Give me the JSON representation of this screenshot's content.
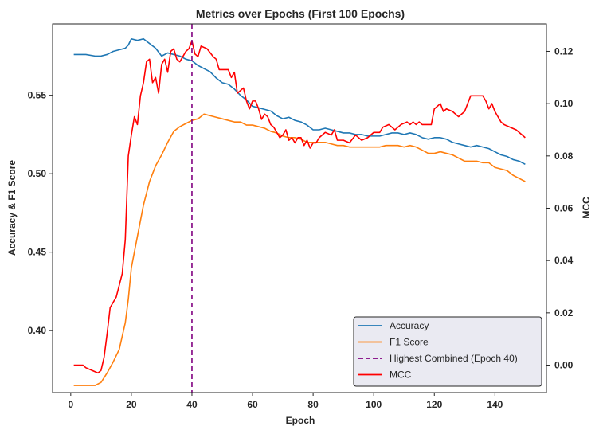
{
  "chart_data": {
    "type": "line",
    "title": "Metrics over Epochs (First 100 Epochs)",
    "xlabel": "Epoch",
    "ylabel_left": "Accuracy & F1 Score",
    "ylabel_right": "MCC",
    "xlim": [
      -6,
      157
    ],
    "ylim_left": [
      0.3605,
      0.5955
    ],
    "ylim_right": [
      -0.0105,
      0.1305
    ],
    "x_ticks": [
      0,
      20,
      40,
      60,
      80,
      100,
      120,
      140
    ],
    "y_ticks_left": [
      0.4,
      0.45,
      0.5,
      0.55
    ],
    "y_ticks_right": [
      0.0,
      0.02,
      0.04,
      0.06,
      0.08,
      0.1,
      0.12
    ],
    "grid": false,
    "legend_position": "lower right",
    "vline": {
      "x": 40,
      "label": "Highest Combined (Epoch 40)",
      "color": "#800080"
    },
    "series": [
      {
        "name": "Accuracy",
        "axis": "left",
        "color": "#1f77b4",
        "points": [
          [
            1,
            0.576
          ],
          [
            5,
            0.576
          ],
          [
            8,
            0.575
          ],
          [
            10,
            0.575
          ],
          [
            12,
            0.576
          ],
          [
            14,
            0.578
          ],
          [
            16,
            0.579
          ],
          [
            18,
            0.58
          ],
          [
            19,
            0.582
          ],
          [
            20,
            0.586
          ],
          [
            22,
            0.585
          ],
          [
            24,
            0.586
          ],
          [
            26,
            0.583
          ],
          [
            28,
            0.58
          ],
          [
            30,
            0.575
          ],
          [
            32,
            0.577
          ],
          [
            34,
            0.576
          ],
          [
            36,
            0.575
          ],
          [
            38,
            0.573
          ],
          [
            40,
            0.572
          ],
          [
            42,
            0.569
          ],
          [
            44,
            0.567
          ],
          [
            46,
            0.565
          ],
          [
            48,
            0.561
          ],
          [
            50,
            0.558
          ],
          [
            52,
            0.557
          ],
          [
            54,
            0.554
          ],
          [
            56,
            0.55
          ],
          [
            58,
            0.547
          ],
          [
            60,
            0.543
          ],
          [
            62,
            0.542
          ],
          [
            64,
            0.541
          ],
          [
            66,
            0.54
          ],
          [
            68,
            0.537
          ],
          [
            70,
            0.535
          ],
          [
            72,
            0.536
          ],
          [
            74,
            0.534
          ],
          [
            76,
            0.533
          ],
          [
            78,
            0.531
          ],
          [
            80,
            0.528
          ],
          [
            82,
            0.528
          ],
          [
            84,
            0.529
          ],
          [
            86,
            0.528
          ],
          [
            88,
            0.527
          ],
          [
            90,
            0.526
          ],
          [
            92,
            0.526
          ],
          [
            94,
            0.525
          ],
          [
            96,
            0.525
          ],
          [
            98,
            0.524
          ],
          [
            100,
            0.524
          ],
          [
            102,
            0.524
          ],
          [
            104,
            0.525
          ],
          [
            106,
            0.526
          ],
          [
            108,
            0.526
          ],
          [
            110,
            0.525
          ],
          [
            112,
            0.526
          ],
          [
            114,
            0.525
          ],
          [
            116,
            0.523
          ],
          [
            118,
            0.522
          ],
          [
            120,
            0.523
          ],
          [
            122,
            0.523
          ],
          [
            124,
            0.522
          ],
          [
            126,
            0.52
          ],
          [
            128,
            0.519
          ],
          [
            130,
            0.518
          ],
          [
            132,
            0.517
          ],
          [
            134,
            0.518
          ],
          [
            136,
            0.517
          ],
          [
            138,
            0.516
          ],
          [
            140,
            0.514
          ],
          [
            142,
            0.512
          ],
          [
            144,
            0.511
          ],
          [
            146,
            0.509
          ],
          [
            148,
            0.508
          ],
          [
            150,
            0.506
          ]
        ]
      },
      {
        "name": "F1 Score",
        "axis": "left",
        "color": "#ff7f0e",
        "points": [
          [
            1,
            0.365
          ],
          [
            5,
            0.365
          ],
          [
            8,
            0.365
          ],
          [
            10,
            0.367
          ],
          [
            12,
            0.373
          ],
          [
            14,
            0.38
          ],
          [
            16,
            0.388
          ],
          [
            18,
            0.405
          ],
          [
            19,
            0.42
          ],
          [
            20,
            0.44
          ],
          [
            22,
            0.46
          ],
          [
            24,
            0.48
          ],
          [
            26,
            0.495
          ],
          [
            28,
            0.505
          ],
          [
            30,
            0.512
          ],
          [
            32,
            0.52
          ],
          [
            34,
            0.527
          ],
          [
            36,
            0.53
          ],
          [
            38,
            0.532
          ],
          [
            40,
            0.534
          ],
          [
            42,
            0.535
          ],
          [
            44,
            0.538
          ],
          [
            46,
            0.537
          ],
          [
            48,
            0.536
          ],
          [
            50,
            0.535
          ],
          [
            52,
            0.534
          ],
          [
            54,
            0.533
          ],
          [
            56,
            0.533
          ],
          [
            58,
            0.531
          ],
          [
            60,
            0.531
          ],
          [
            62,
            0.53
          ],
          [
            64,
            0.529
          ],
          [
            66,
            0.527
          ],
          [
            68,
            0.526
          ],
          [
            70,
            0.524
          ],
          [
            72,
            0.523
          ],
          [
            74,
            0.523
          ],
          [
            76,
            0.522
          ],
          [
            78,
            0.52
          ],
          [
            80,
            0.52
          ],
          [
            82,
            0.52
          ],
          [
            84,
            0.52
          ],
          [
            86,
            0.519
          ],
          [
            88,
            0.518
          ],
          [
            90,
            0.518
          ],
          [
            92,
            0.517
          ],
          [
            94,
            0.517
          ],
          [
            96,
            0.517
          ],
          [
            98,
            0.517
          ],
          [
            100,
            0.517
          ],
          [
            102,
            0.517
          ],
          [
            104,
            0.518
          ],
          [
            106,
            0.518
          ],
          [
            108,
            0.518
          ],
          [
            110,
            0.517
          ],
          [
            112,
            0.518
          ],
          [
            114,
            0.517
          ],
          [
            116,
            0.515
          ],
          [
            118,
            0.513
          ],
          [
            120,
            0.513
          ],
          [
            122,
            0.514
          ],
          [
            124,
            0.513
          ],
          [
            126,
            0.512
          ],
          [
            128,
            0.51
          ],
          [
            130,
            0.508
          ],
          [
            132,
            0.508
          ],
          [
            134,
            0.508
          ],
          [
            136,
            0.507
          ],
          [
            138,
            0.507
          ],
          [
            140,
            0.504
          ],
          [
            142,
            0.503
          ],
          [
            144,
            0.502
          ],
          [
            146,
            0.499
          ],
          [
            148,
            0.497
          ],
          [
            150,
            0.495
          ]
        ]
      },
      {
        "name": "MCC",
        "axis": "right",
        "color": "#ff0000",
        "points": [
          [
            1,
            0.0
          ],
          [
            4,
            0.0
          ],
          [
            5,
            -0.001
          ],
          [
            7,
            -0.002
          ],
          [
            9,
            -0.003
          ],
          [
            10,
            -0.002
          ],
          [
            11,
            0.003
          ],
          [
            12,
            0.012
          ],
          [
            13,
            0.022
          ],
          [
            15,
            0.026
          ],
          [
            17,
            0.035
          ],
          [
            18,
            0.048
          ],
          [
            19,
            0.08
          ],
          [
            20,
            0.088
          ],
          [
            21,
            0.095
          ],
          [
            22,
            0.092
          ],
          [
            23,
            0.103
          ],
          [
            24,
            0.108
          ],
          [
            25,
            0.116
          ],
          [
            26,
            0.117
          ],
          [
            27,
            0.108
          ],
          [
            28,
            0.11
          ],
          [
            29,
            0.104
          ],
          [
            30,
            0.115
          ],
          [
            31,
            0.117
          ],
          [
            32,
            0.112
          ],
          [
            33,
            0.12
          ],
          [
            34,
            0.121
          ],
          [
            35,
            0.117
          ],
          [
            36,
            0.116
          ],
          [
            37,
            0.118
          ],
          [
            38,
            0.12
          ],
          [
            39,
            0.121
          ],
          [
            40,
            0.124
          ],
          [
            41,
            0.119
          ],
          [
            42,
            0.118
          ],
          [
            43,
            0.122
          ],
          [
            45,
            0.121
          ],
          [
            47,
            0.118
          ],
          [
            48,
            0.117
          ],
          [
            49,
            0.113
          ],
          [
            50,
            0.113
          ],
          [
            52,
            0.113
          ],
          [
            53,
            0.11
          ],
          [
            54,
            0.112
          ],
          [
            55,
            0.104
          ],
          [
            56,
            0.105
          ],
          [
            57,
            0.106
          ],
          [
            58,
            0.101
          ],
          [
            59,
            0.098
          ],
          [
            60,
            0.101
          ],
          [
            61,
            0.101
          ],
          [
            62,
            0.098
          ],
          [
            63,
            0.094
          ],
          [
            64,
            0.096
          ],
          [
            65,
            0.095
          ],
          [
            66,
            0.092
          ],
          [
            67,
            0.091
          ],
          [
            68,
            0.089
          ],
          [
            69,
            0.087
          ],
          [
            70,
            0.088
          ],
          [
            71,
            0.09
          ],
          [
            72,
            0.086
          ],
          [
            73,
            0.087
          ],
          [
            74,
            0.085
          ],
          [
            75,
            0.087
          ],
          [
            76,
            0.087
          ],
          [
            77,
            0.084
          ],
          [
            78,
            0.086
          ],
          [
            79,
            0.083
          ],
          [
            80,
            0.085
          ],
          [
            81,
            0.085
          ],
          [
            82,
            0.087
          ],
          [
            84,
            0.089
          ],
          [
            86,
            0.088
          ],
          [
            87,
            0.09
          ],
          [
            88,
            0.086
          ],
          [
            90,
            0.086
          ],
          [
            92,
            0.085
          ],
          [
            94,
            0.088
          ],
          [
            96,
            0.086
          ],
          [
            98,
            0.087
          ],
          [
            100,
            0.089
          ],
          [
            102,
            0.089
          ],
          [
            103,
            0.091
          ],
          [
            105,
            0.092
          ],
          [
            107,
            0.09
          ],
          [
            109,
            0.092
          ],
          [
            111,
            0.093
          ],
          [
            112,
            0.092
          ],
          [
            113,
            0.093
          ],
          [
            114,
            0.092
          ],
          [
            115,
            0.093
          ],
          [
            116,
            0.092
          ],
          [
            117,
            0.092
          ],
          [
            118,
            0.092
          ],
          [
            119,
            0.092
          ],
          [
            120,
            0.098
          ],
          [
            122,
            0.1
          ],
          [
            123,
            0.097
          ],
          [
            124,
            0.098
          ],
          [
            126,
            0.097
          ],
          [
            128,
            0.095
          ],
          [
            129,
            0.096
          ],
          [
            130,
            0.097
          ],
          [
            131,
            0.1
          ],
          [
            132,
            0.103
          ],
          [
            134,
            0.103
          ],
          [
            136,
            0.103
          ],
          [
            137,
            0.101
          ],
          [
            138,
            0.098
          ],
          [
            139,
            0.1
          ],
          [
            140,
            0.097
          ],
          [
            142,
            0.093
          ],
          [
            143,
            0.092
          ],
          [
            145,
            0.091
          ],
          [
            147,
            0.09
          ],
          [
            148,
            0.089
          ],
          [
            150,
            0.087
          ]
        ]
      }
    ],
    "legend_entries": [
      {
        "label": "Accuracy",
        "color": "#1f77b4",
        "style": "solid"
      },
      {
        "label": "F1 Score",
        "color": "#ff7f0e",
        "style": "solid"
      },
      {
        "label": "Highest Combined (Epoch 40)",
        "color": "#800080",
        "style": "dashed"
      },
      {
        "label": "MCC",
        "color": "#ff0000",
        "style": "solid"
      }
    ]
  }
}
